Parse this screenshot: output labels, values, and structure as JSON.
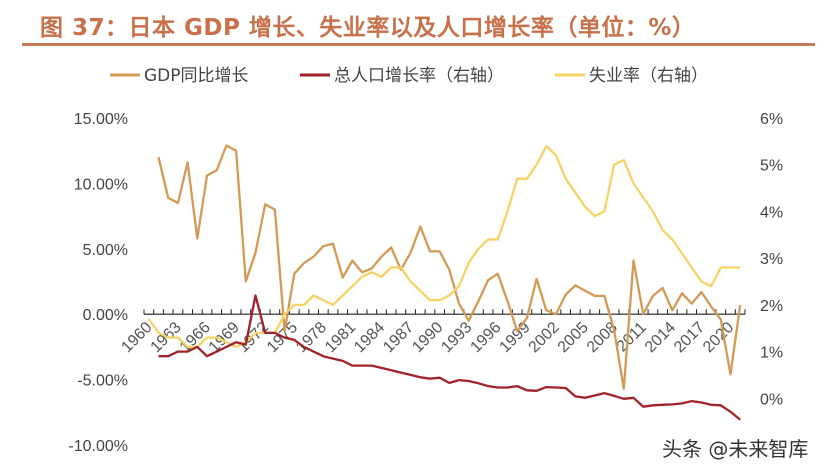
{
  "title": "图 37：日本 GDP 增长、失业率以及人口增长率（单位：%）",
  "watermark": "头条 @未来智库",
  "chart_data": {
    "type": "line",
    "title": "图 37：日本 GDP 增长、失业率以及人口增长率（单位：%）",
    "legend_placement": "top",
    "grid": false,
    "x_start": 1960,
    "x_end": 2021,
    "x_tick_labels": [
      "1960",
      "1963",
      "1966",
      "1969",
      "1972",
      "1975",
      "1978",
      "1981",
      "1984",
      "1987",
      "1990",
      "1993",
      "1996",
      "1999",
      "2002",
      "2005",
      "2008",
      "2011",
      "2014",
      "2017",
      "2020"
    ],
    "left_axis": {
      "ylim": [
        -10,
        15
      ],
      "tick_labels": [
        "-10.00%",
        "-5.00%",
        "0.00%",
        "5.00%",
        "10.00%",
        "15.00%"
      ],
      "ticks": [
        -10,
        -5,
        0,
        5,
        10,
        15
      ]
    },
    "right_axis": {
      "ylim": [
        -1,
        6
      ],
      "tick_labels": [
        "0%",
        "1%",
        "2%",
        "3%",
        "4%",
        "5%",
        "6%"
      ],
      "ticks": [
        0,
        1,
        2,
        3,
        4,
        5,
        6
      ]
    },
    "series": [
      {
        "name": "GDP同比增长",
        "axis": "left",
        "color": "#d49a55",
        "start_year": 1961,
        "values": [
          12.0,
          8.9,
          8.5,
          11.6,
          5.8,
          10.6,
          11.0,
          12.9,
          12.5,
          2.5,
          4.7,
          8.4,
          8.0,
          -1.3,
          3.1,
          3.9,
          4.4,
          5.2,
          5.4,
          2.8,
          4.1,
          3.2,
          3.5,
          4.4,
          5.1,
          3.4,
          4.7,
          6.7,
          4.8,
          4.8,
          3.4,
          0.8,
          -0.5,
          1.0,
          2.6,
          3.1,
          1.0,
          -1.3,
          -0.3,
          2.7,
          0.3,
          0.0,
          1.5,
          2.2,
          1.8,
          1.4,
          1.4,
          -1.2,
          -5.7,
          4.1,
          0.0,
          1.4,
          2.0,
          0.3,
          1.6,
          0.8,
          1.7,
          0.6,
          -0.4,
          -4.6,
          0.7
        ]
      },
      {
        "name": "总人口增长率（右轴）",
        "axis": "right",
        "color": "#a3222a",
        "start_year": 1961,
        "values": [
          0.9,
          0.9,
          1.0,
          1.0,
          1.1,
          0.9,
          1.0,
          1.1,
          1.2,
          1.15,
          2.2,
          1.4,
          1.4,
          1.3,
          1.25,
          1.1,
          1.0,
          0.9,
          0.85,
          0.8,
          0.7,
          0.7,
          0.7,
          0.65,
          0.6,
          0.55,
          0.5,
          0.45,
          0.42,
          0.44,
          0.33,
          0.39,
          0.37,
          0.32,
          0.26,
          0.23,
          0.23,
          0.26,
          0.17,
          0.16,
          0.24,
          0.23,
          0.22,
          0.04,
          0.01,
          0.06,
          0.11,
          0.05,
          -0.01,
          0.01,
          -0.18,
          -0.15,
          -0.14,
          -0.13,
          -0.11,
          -0.06,
          -0.09,
          -0.14,
          -0.15,
          -0.29,
          -0.46
        ]
      },
      {
        "name": "失业率（右轴）",
        "axis": "right",
        "color": "#f7d366",
        "start_year": 1960,
        "values": [
          1.7,
          1.4,
          1.3,
          1.3,
          1.1,
          1.1,
          1.3,
          1.3,
          1.2,
          1.1,
          1.2,
          1.4,
          1.4,
          1.4,
          1.8,
          2.0,
          2.0,
          2.2,
          2.1,
          2.0,
          2.2,
          2.4,
          2.6,
          2.7,
          2.6,
          2.8,
          2.8,
          2.5,
          2.3,
          2.1,
          2.1,
          2.2,
          2.4,
          2.9,
          3.2,
          3.4,
          3.4,
          4.0,
          4.7,
          4.7,
          5.0,
          5.4,
          5.2,
          4.7,
          4.4,
          4.1,
          3.9,
          4.0,
          5.0,
          5.1,
          4.6,
          4.3,
          4.0,
          3.6,
          3.4,
          3.1,
          2.8,
          2.5,
          2.4,
          2.8,
          2.8,
          2.8
        ]
      }
    ]
  }
}
